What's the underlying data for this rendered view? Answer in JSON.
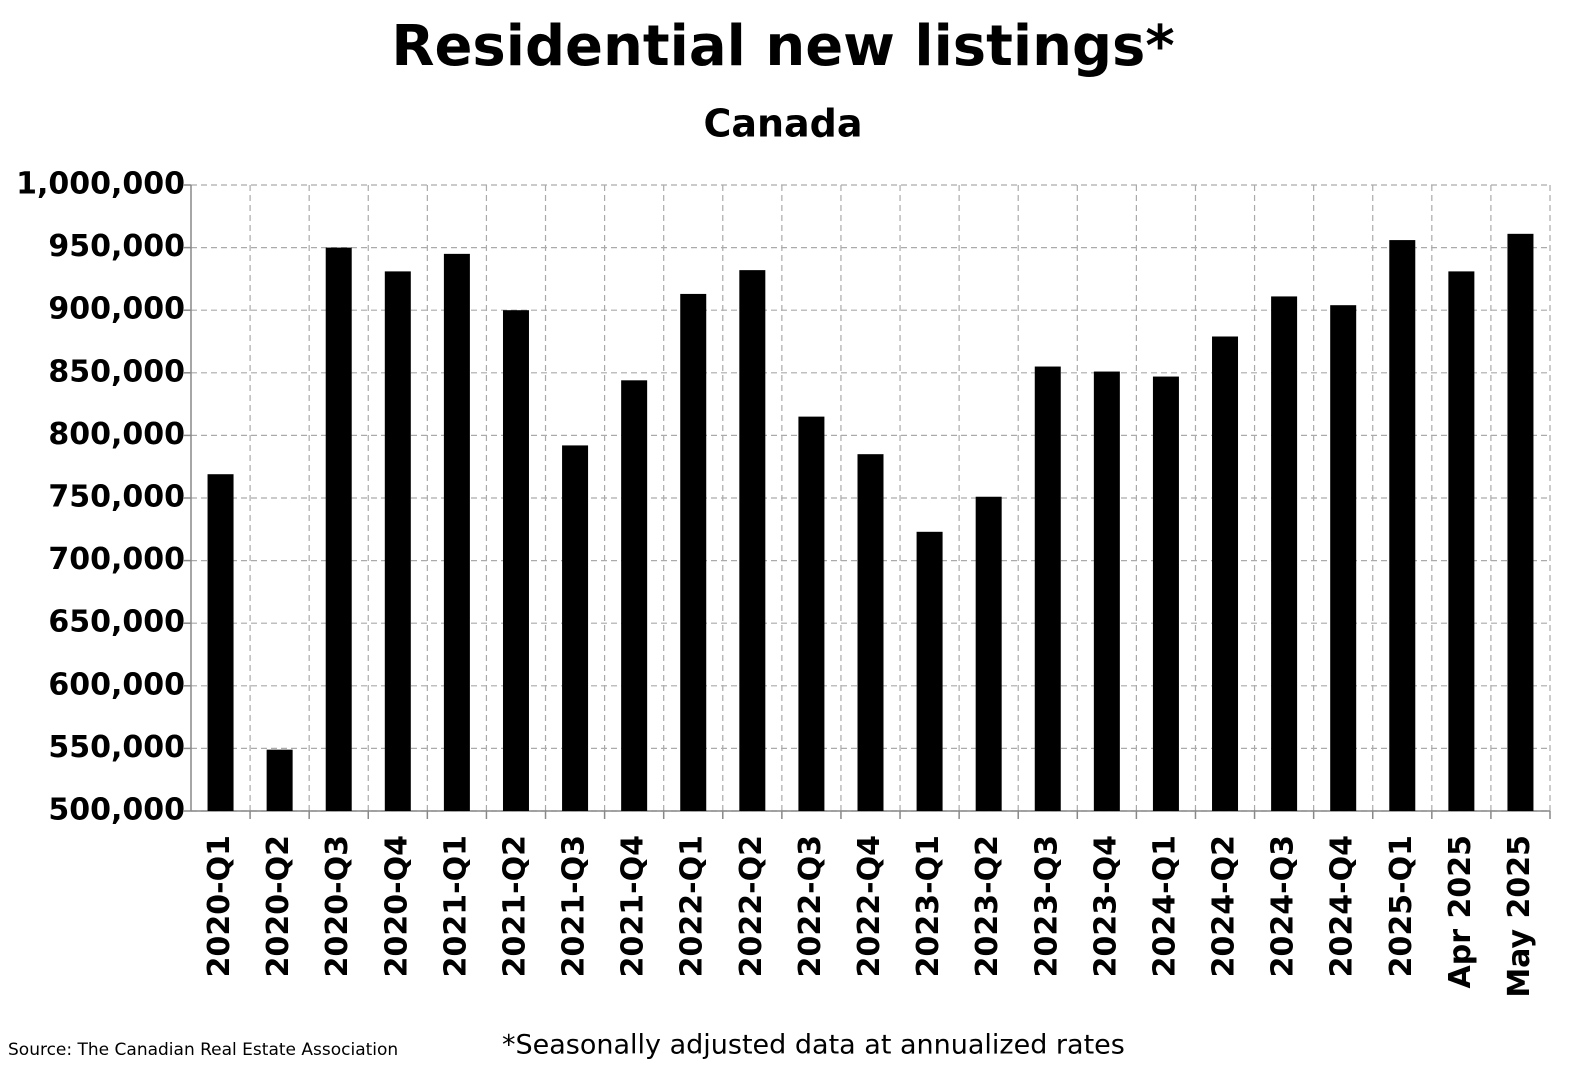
{
  "chart_data": {
    "type": "bar",
    "title": "Residential new listings*",
    "subtitle": "Canada",
    "categories": [
      "2020-Q1",
      "2020-Q2",
      "2020-Q3",
      "2020-Q4",
      "2021-Q1",
      "2021-Q2",
      "2021-Q3",
      "2021-Q4",
      "2022-Q1",
      "2022-Q2",
      "2022-Q3",
      "2022-Q4",
      "2023-Q1",
      "2023-Q2",
      "2023-Q3",
      "2023-Q4",
      "2024-Q1",
      "2024-Q2",
      "2024-Q3",
      "2024-Q4",
      "2025-Q1",
      "Apr 2025",
      "May 2025"
    ],
    "values": [
      769000,
      549000,
      950000,
      931000,
      945000,
      900000,
      792000,
      844000,
      913000,
      932000,
      815000,
      785000,
      723000,
      751000,
      855000,
      851000,
      847000,
      879000,
      911000,
      904000,
      956000,
      931000,
      961000
    ],
    "color": "#000000",
    "ylim": [
      500000,
      1000000
    ],
    "yticks": [
      {
        "value": 500000,
        "label": "500,000"
      },
      {
        "value": 550000,
        "label": "550,000"
      },
      {
        "value": 600000,
        "label": "600,000"
      },
      {
        "value": 650000,
        "label": "650,000"
      },
      {
        "value": 700000,
        "label": "700,000"
      },
      {
        "value": 750000,
        "label": "750,000"
      },
      {
        "value": 800000,
        "label": "800,000"
      },
      {
        "value": 850000,
        "label": "850,000"
      },
      {
        "value": 900000,
        "label": "900,000"
      },
      {
        "value": 950000,
        "label": "950,000"
      },
      {
        "value": 1000000,
        "label": "1,000,000"
      }
    ],
    "grid": true,
    "source": "Source: The Canadian Real Estate Association",
    "footnote": "*Seasonally adjusted data at annualized rates"
  }
}
